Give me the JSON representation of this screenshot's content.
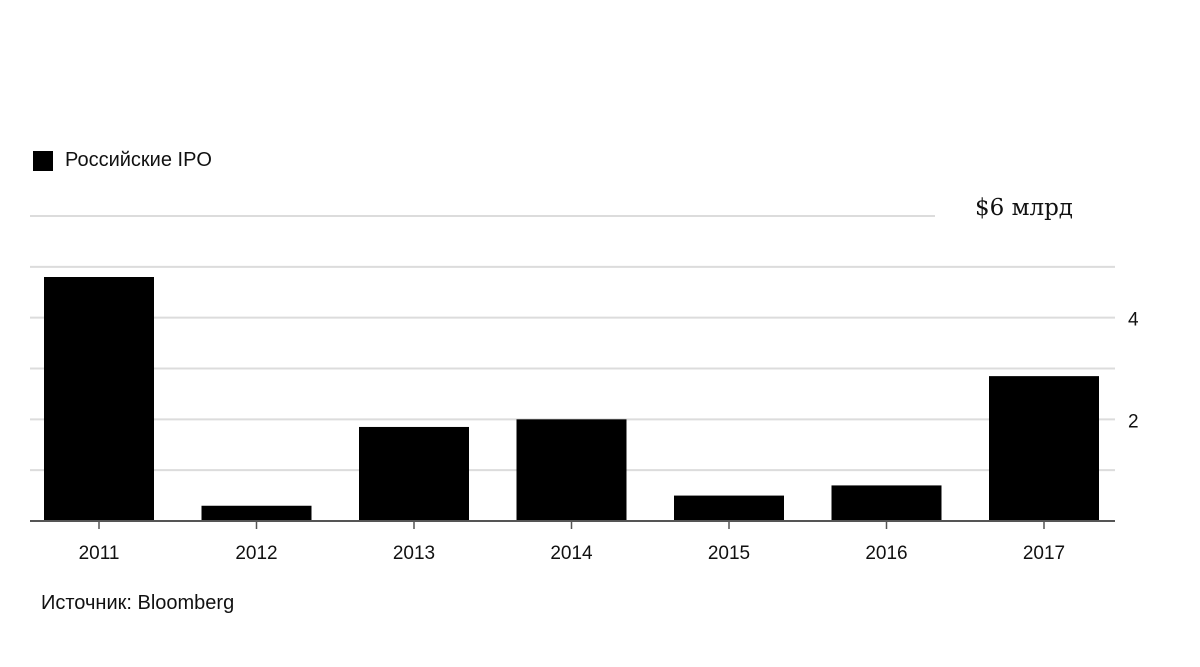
{
  "chart_data": {
    "type": "bar",
    "categories": [
      "2011",
      "2012",
      "2013",
      "2014",
      "2015",
      "2016",
      "2017"
    ],
    "series": [
      {
        "name": "Российские IPO",
        "values": [
          4.8,
          0.3,
          1.85,
          2.0,
          0.5,
          0.7,
          2.85
        ],
        "color": "#000000"
      }
    ],
    "ylim": [
      0,
      6
    ],
    "y_ticks": [
      {
        "value": 2,
        "label": "2"
      },
      {
        "value": 4,
        "label": "4"
      },
      {
        "value": 6,
        "label": "$6 млрд"
      }
    ],
    "grid": true,
    "legend_position": "top-left"
  },
  "legend": {
    "label": "Российские IPO"
  },
  "source": "Источник: Bloomberg"
}
